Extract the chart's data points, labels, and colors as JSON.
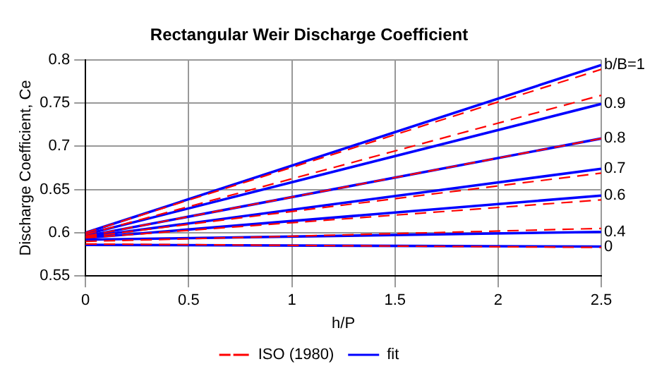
{
  "chart_data": {
    "type": "line",
    "title": "Rectangular Weir Discharge Coefficient",
    "xlabel": "h/P",
    "ylabel": "Discharge Coefficient, Ce",
    "xlim": [
      0,
      2.5
    ],
    "xticks": [
      0,
      0.5,
      1,
      1.5,
      2,
      2.5
    ],
    "ylim": [
      0.55,
      0.8
    ],
    "yticks": [
      0.55,
      0.6,
      0.65,
      0.7,
      0.75,
      0.8
    ],
    "grid": true,
    "legend": "bottom",
    "marker": "none",
    "x": [
      0,
      2.5
    ],
    "series": [
      {
        "name": "ISO (1980)",
        "color": "#ff0000",
        "line_style": "dashed",
        "values": [
          0.6,
          0.789
        ]
      },
      {
        "color": "#ff0000",
        "line_style": "dashed",
        "values": [
          0.598,
          0.759
        ]
      },
      {
        "color": "#ff0000",
        "line_style": "dashed",
        "values": [
          0.596,
          0.709
        ]
      },
      {
        "color": "#ff0000",
        "line_style": "dashed",
        "values": [
          0.595,
          0.669
        ]
      },
      {
        "color": "#ff0000",
        "line_style": "dashed",
        "values": [
          0.594,
          0.638
        ]
      },
      {
        "color": "#ff0000",
        "line_style": "dashed",
        "values": [
          0.59,
          0.605
        ]
      },
      {
        "color": "#ff0000",
        "line_style": "dashed",
        "values": [
          0.587,
          0.583
        ]
      },
      {
        "name": "fit",
        "color": "#0000ff",
        "line_style": "solid",
        "values": [
          0.6,
          0.794
        ]
      },
      {
        "color": "#0000ff",
        "line_style": "solid",
        "values": [
          0.598,
          0.749
        ]
      },
      {
        "color": "#0000ff",
        "line_style": "solid",
        "values": [
          0.596,
          0.709
        ]
      },
      {
        "color": "#0000ff",
        "line_style": "solid",
        "values": [
          0.595,
          0.674
        ]
      },
      {
        "color": "#0000ff",
        "line_style": "solid",
        "values": [
          0.594,
          0.643
        ]
      },
      {
        "color": "#0000ff",
        "line_style": "solid",
        "values": [
          0.592,
          0.601
        ]
      },
      {
        "color": "#0000ff",
        "line_style": "solid",
        "values": [
          0.586,
          0.584
        ]
      }
    ],
    "annotations": [
      "b/B=1",
      "0.9",
      "0.8",
      "0.7",
      "0.6",
      "0.4",
      "0"
    ]
  }
}
